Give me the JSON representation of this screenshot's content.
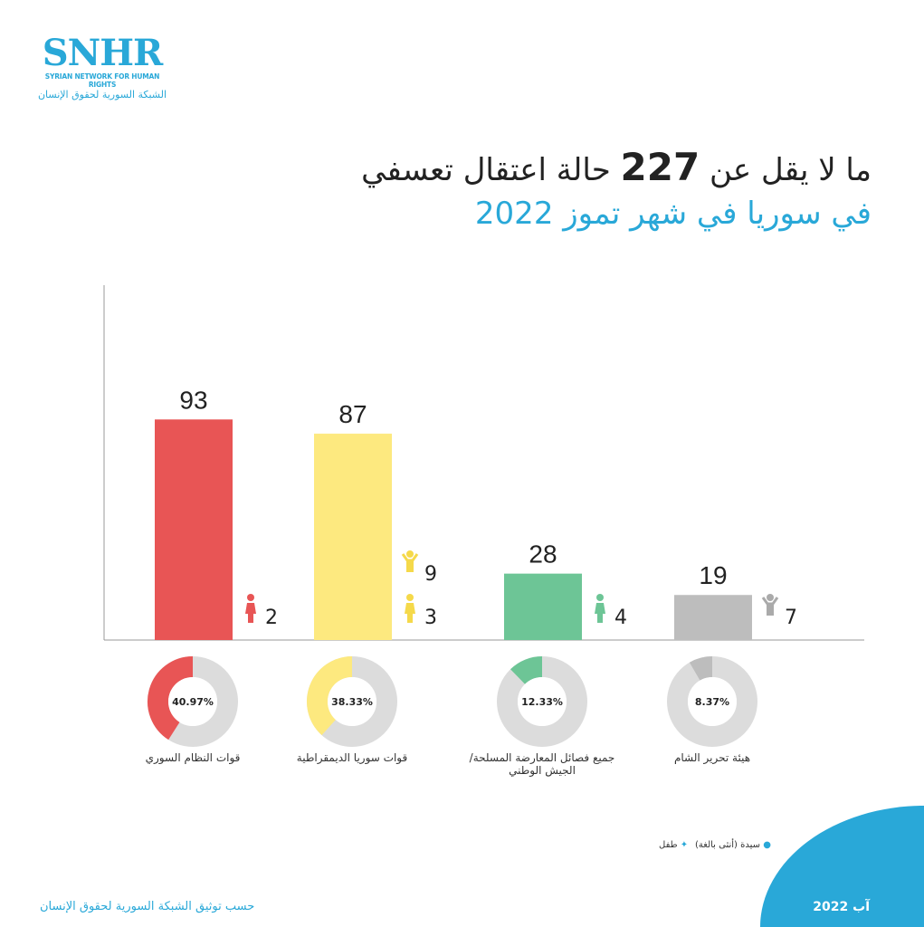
{
  "logo": {
    "abbr": "SNHR",
    "en": "SYRIAN NETWORK FOR HUMAN RIGHTS",
    "ar": "الشبكة السورية لحقوق الإنسان"
  },
  "title": {
    "pre": "ما لا يقل عن",
    "num": "227",
    "post": "حالة اعتقال تعسفي",
    "line2": "في سوريا في شهر تموز 2022"
  },
  "chart_data": {
    "type": "bar",
    "title": "ما لا يقل عن 227 حالة اعتقال تعسفي في سوريا في شهر تموز 2022",
    "categories": [
      "قوات النظام السوري",
      "قوات سوريا الديمقراطية",
      "جميع فصائل المعارضة المسلحة/ الجيش الوطني",
      "هيئة تحرير الشام"
    ],
    "values": [
      93,
      87,
      28,
      19
    ],
    "percent_labels": [
      "40.97%",
      "38.33%",
      "12.33%",
      "8.37%"
    ],
    "percents": [
      40.97,
      38.33,
      12.33,
      8.37
    ],
    "women": [
      2,
      3,
      4,
      null
    ],
    "children": [
      null,
      9,
      null,
      7
    ],
    "colors": [
      "#e85555",
      "#fde97f",
      "#6dc596",
      "#bdbdbd"
    ],
    "ylim": [
      0,
      100
    ]
  },
  "legend": {
    "woman": "سيدة (أنثى بالغة)",
    "child": "طفل"
  },
  "footer": {
    "source": "حسب توثيق الشبكة السورية لحقوق الإنسان",
    "date": "آب 2022"
  },
  "colors": {
    "accent": "#29a8d8"
  }
}
